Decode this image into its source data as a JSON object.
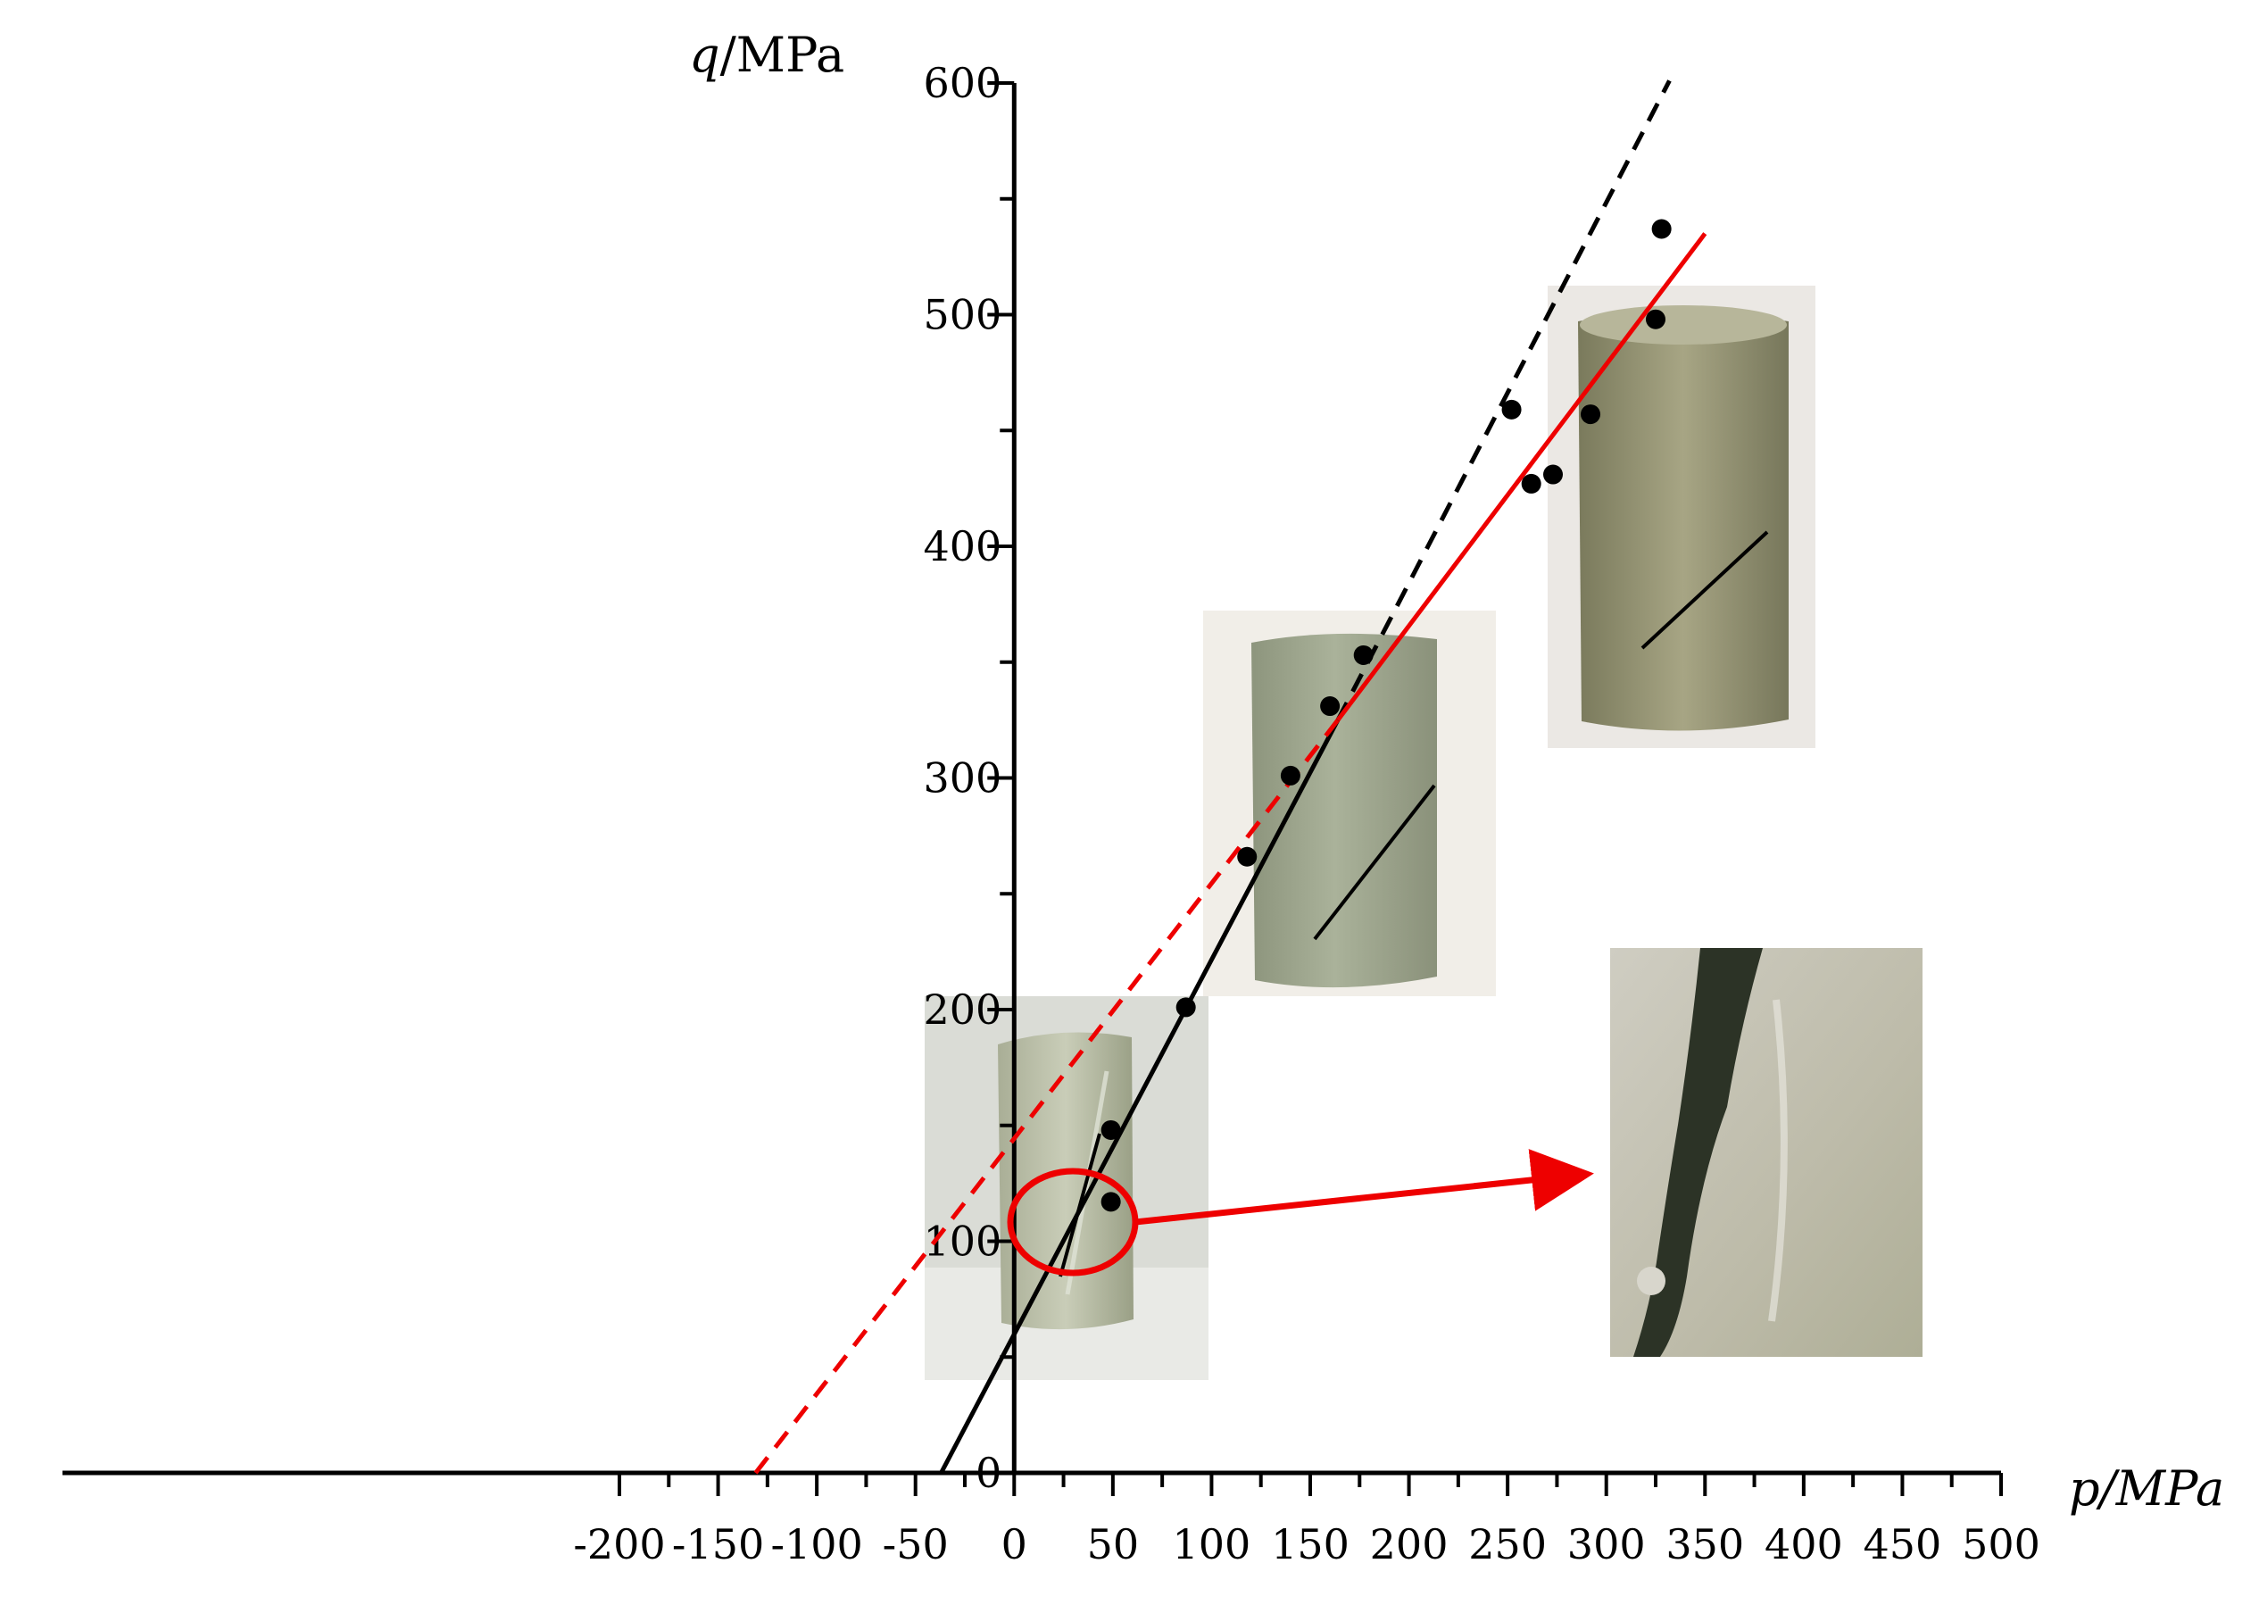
{
  "chart_data": {
    "type": "scatter",
    "title": "",
    "xlabel": {
      "var": "p",
      "unit": "/MPa"
    },
    "ylabel": {
      "var": "q",
      "unit": "/MPa"
    },
    "xlim": [
      -200,
      500
    ],
    "ylim": [
      0,
      600
    ],
    "grid": false,
    "x_ticks": [
      -200,
      -150,
      -100,
      -50,
      0,
      50,
      100,
      150,
      200,
      250,
      300,
      350,
      400,
      450,
      500
    ],
    "x_tick_labels": [
      "-200",
      "-150",
      "-100",
      "-50",
      "0",
      "50",
      "100",
      "150",
      "200",
      "250",
      "300",
      "350",
      "400",
      "450",
      "500"
    ],
    "y_ticks": [
      0,
      100,
      200,
      300,
      400,
      500,
      600
    ],
    "y_tick_labels": [
      "0",
      "100",
      "200",
      "300",
      "400",
      "500",
      "600"
    ],
    "points": [
      {
        "x": 49,
        "y": 117
      },
      {
        "x": 49,
        "y": 148
      },
      {
        "x": 87,
        "y": 201
      },
      {
        "x": 118,
        "y": 266
      },
      {
        "x": 140,
        "y": 301
      },
      {
        "x": 160,
        "y": 331
      },
      {
        "x": 177,
        "y": 353
      },
      {
        "x": 252,
        "y": 459
      },
      {
        "x": 262,
        "y": 427
      },
      {
        "x": 273,
        "y": 431
      },
      {
        "x": 292,
        "y": 457
      },
      {
        "x": 325,
        "y": 498
      },
      {
        "x": 328,
        "y": 537
      }
    ],
    "lines": [
      {
        "name": "",
        "color": "#000000",
        "style": "solid",
        "x": [
          -37,
          164
        ],
        "y": [
          0,
          325
        ]
      },
      {
        "name": "",
        "color": "#000000",
        "style": "dashed",
        "x": [
          164,
          332
        ],
        "y": [
          325,
          601
        ]
      },
      {
        "name": "",
        "color": "#ee0000",
        "style": "dashed",
        "x": [
          -131,
          164
        ],
        "y": [
          0,
          325
        ]
      },
      {
        "name": "",
        "color": "#ee0000",
        "style": "solid",
        "x": [
          164,
          350
        ],
        "y": [
          325,
          535
        ]
      }
    ],
    "annotations": {
      "highlight_circle_color": "#ee0000",
      "arrow_color": "#ee0000"
    },
    "insets": [
      {
        "name": "specimen-photo-low-confinement",
        "colors": [
          "#d8dcd2",
          "#b8bca8",
          "#9ea58c"
        ]
      },
      {
        "name": "specimen-photo-mid-confinement",
        "colors": [
          "#f3efe9",
          "#a9ae98",
          "#8f9780"
        ]
      },
      {
        "name": "specimen-photo-high-confinement",
        "colors": [
          "#ece9e6",
          "#a8a88a",
          "#7f7f62"
        ]
      },
      {
        "name": "fracture-closeup-photo",
        "colors": [
          "#d8d6cc",
          "#b9b7a8",
          "#2c3326"
        ]
      }
    ]
  }
}
